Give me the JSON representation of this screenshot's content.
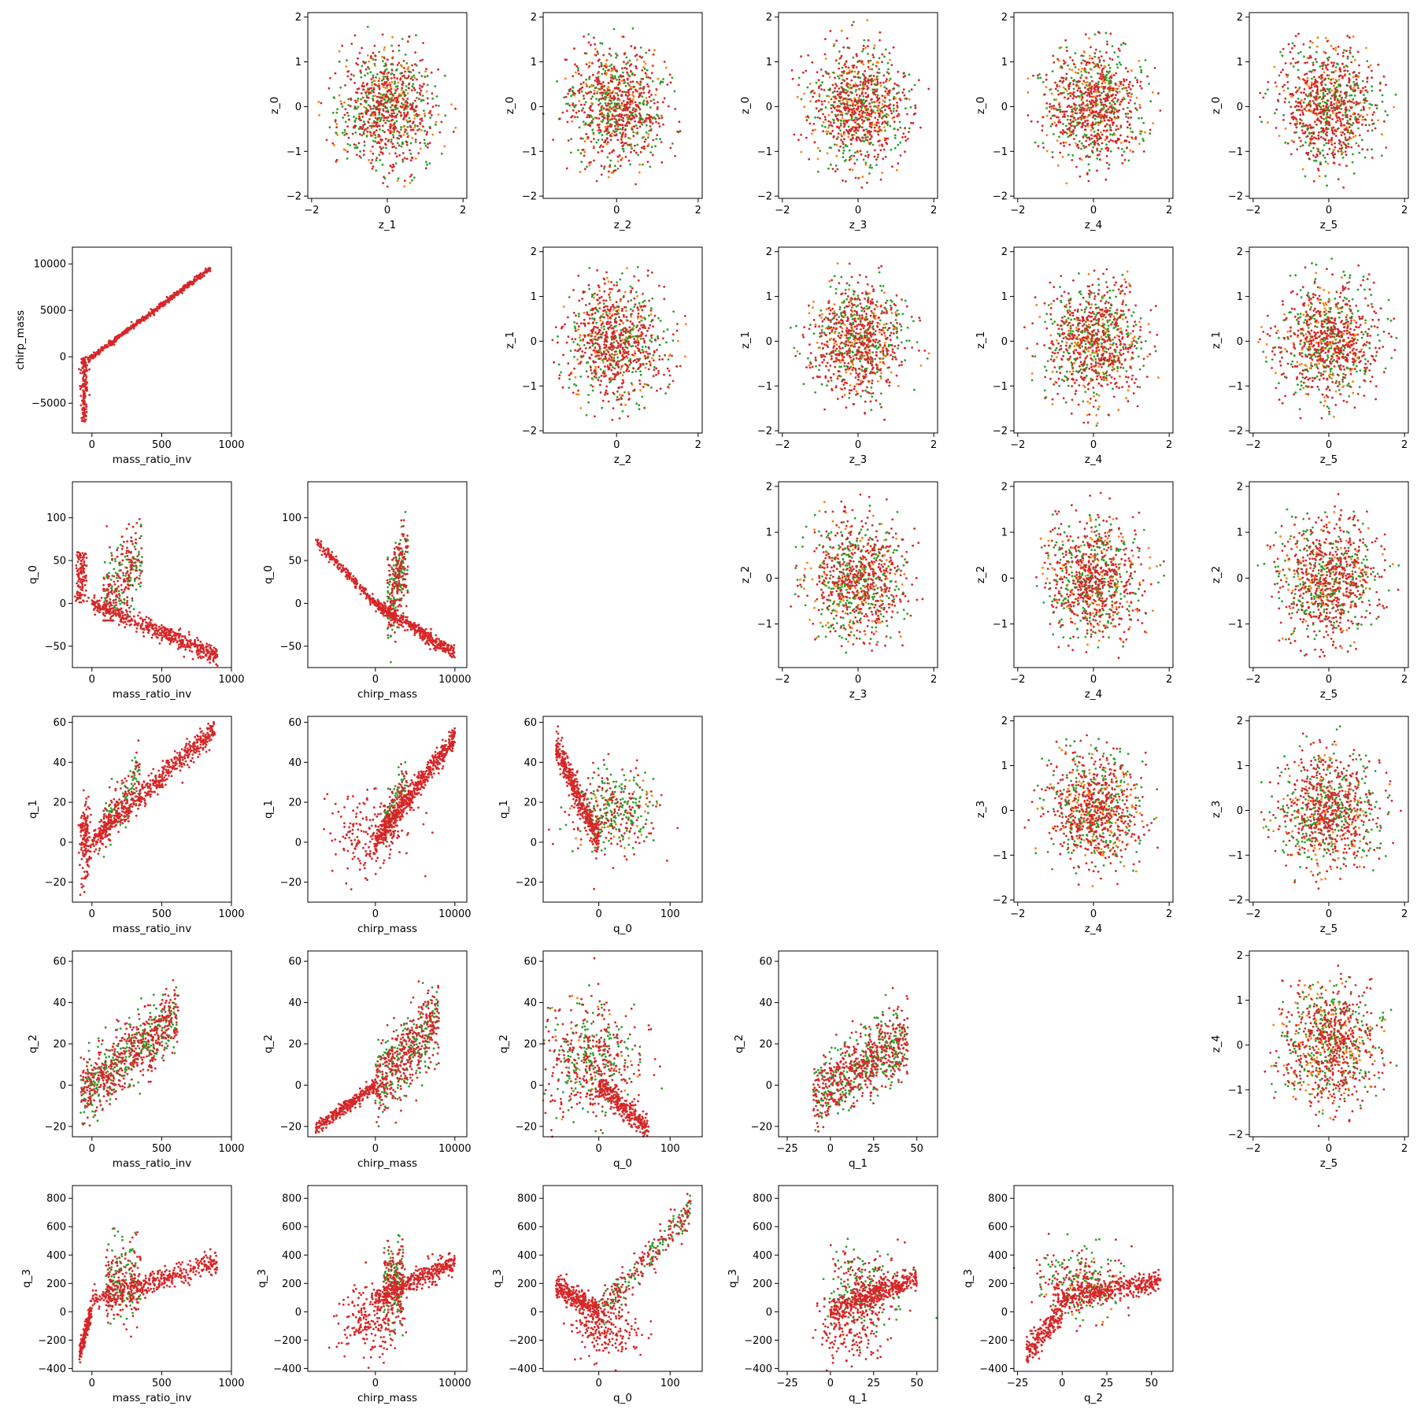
{
  "figure": {
    "description_colors": {
      "primary": "#d62728",
      "secondary": "#2ca02c",
      "tertiary": "#ff7f0e"
    }
  },
  "chart_data": [
    {
      "id": "z1_z0",
      "row": 0,
      "col": 1,
      "type": "scatter",
      "xlabel": "z_1",
      "ylabel": "z_0",
      "xlim": [
        -2.1,
        2.1
      ],
      "ylim": [
        -2.05,
        2.1
      ],
      "xticks": [
        -2,
        0,
        2
      ],
      "yticks": [
        -2,
        -1,
        0,
        1,
        2
      ],
      "gen": "blob",
      "cx": 0,
      "cy": 0,
      "sx": 0.65,
      "sy": 0.65,
      "r": 1.9
    },
    {
      "id": "z2_z0",
      "row": 0,
      "col": 2,
      "type": "scatter",
      "xlabel": "z_2",
      "ylabel": "z_0",
      "xlim": [
        -1.8,
        2.1
      ],
      "ylim": [
        -2.05,
        2.1
      ],
      "xticks": [
        0,
        2
      ],
      "yticks": [
        -2,
        -1,
        0,
        1,
        2
      ],
      "gen": "blob",
      "cx": 0,
      "cy": 0,
      "sx": 0.6,
      "sy": 0.65,
      "r": 1.85
    },
    {
      "id": "z3_z0",
      "row": 0,
      "col": 3,
      "type": "scatter",
      "xlabel": "z_3",
      "ylabel": "z_0",
      "xlim": [
        -2.1,
        2.1
      ],
      "ylim": [
        -2.05,
        2.1
      ],
      "xticks": [
        -2,
        0,
        2
      ],
      "yticks": [
        -2,
        -1,
        0,
        1,
        2
      ],
      "gen": "blob",
      "cx": 0,
      "cy": 0,
      "sx": 0.65,
      "sy": 0.65,
      "r": 1.95
    },
    {
      "id": "z4_z0",
      "row": 0,
      "col": 4,
      "type": "scatter",
      "xlabel": "z_4",
      "ylabel": "z_0",
      "xlim": [
        -2.1,
        2.1
      ],
      "ylim": [
        -2.05,
        2.1
      ],
      "xticks": [
        -2,
        0,
        2
      ],
      "yticks": [
        -2,
        -1,
        0,
        1,
        2
      ],
      "gen": "blob",
      "cx": 0,
      "cy": 0,
      "sx": 0.65,
      "sy": 0.65,
      "r": 1.9
    },
    {
      "id": "z5_z0",
      "row": 0,
      "col": 5,
      "type": "scatter",
      "xlabel": "z_5",
      "ylabel": "z_0",
      "xlim": [
        -2.1,
        2.1
      ],
      "ylim": [
        -2.05,
        2.1
      ],
      "xticks": [
        -2,
        0,
        2
      ],
      "yticks": [
        -2,
        -1,
        0,
        1,
        2
      ],
      "gen": "blob",
      "cx": 0,
      "cy": 0,
      "sx": 0.65,
      "sy": 0.65,
      "r": 1.9
    },
    {
      "id": "mri_chirp",
      "row": 1,
      "col": 0,
      "type": "scatter",
      "xlabel": "mass_ratio_inv",
      "ylabel": "chirp_mass",
      "xlim": [
        -140,
        1000
      ],
      "ylim": [
        -8200,
        11800
      ],
      "xticks": [
        0,
        500,
        1000
      ],
      "yticks": [
        -5000,
        0,
        5000,
        10000
      ],
      "gen": "mri_chirp"
    },
    {
      "id": "z2_z1",
      "row": 1,
      "col": 2,
      "type": "scatter",
      "xlabel": "z_2",
      "ylabel": "z_1",
      "xlim": [
        -1.8,
        2.1
      ],
      "ylim": [
        -2.05,
        2.1
      ],
      "xticks": [
        0,
        2
      ],
      "yticks": [
        -2,
        -1,
        0,
        1,
        2
      ],
      "gen": "blob",
      "cx": 0,
      "cy": 0,
      "sx": 0.6,
      "sy": 0.65,
      "r": 1.85
    },
    {
      "id": "z3_z1",
      "row": 1,
      "col": 3,
      "type": "scatter",
      "xlabel": "z_3",
      "ylabel": "z_1",
      "xlim": [
        -2.1,
        2.1
      ],
      "ylim": [
        -2.05,
        2.1
      ],
      "xticks": [
        -2,
        0,
        2
      ],
      "yticks": [
        -2,
        -1,
        0,
        1,
        2
      ],
      "gen": "blob",
      "cx": 0,
      "cy": 0,
      "sx": 0.65,
      "sy": 0.65,
      "r": 1.9
    },
    {
      "id": "z4_z1",
      "row": 1,
      "col": 4,
      "type": "scatter",
      "xlabel": "z_4",
      "ylabel": "z_1",
      "xlim": [
        -2.1,
        2.1
      ],
      "ylim": [
        -2.05,
        2.1
      ],
      "xticks": [
        -2,
        0,
        2
      ],
      "yticks": [
        -2,
        -1,
        0,
        1,
        2
      ],
      "gen": "blob",
      "cx": 0,
      "cy": 0,
      "sx": 0.65,
      "sy": 0.65,
      "r": 1.9
    },
    {
      "id": "z5_z1",
      "row": 1,
      "col": 5,
      "type": "scatter",
      "xlabel": "z_5",
      "ylabel": "z_1",
      "xlim": [
        -2.1,
        2.1
      ],
      "ylim": [
        -2.05,
        2.1
      ],
      "xticks": [
        -2,
        0,
        2
      ],
      "yticks": [
        -2,
        -1,
        0,
        1,
        2
      ],
      "gen": "blob",
      "cx": 0,
      "cy": 0,
      "sx": 0.65,
      "sy": 0.65,
      "r": 1.9
    },
    {
      "id": "mri_q0",
      "row": 2,
      "col": 0,
      "type": "scatter",
      "xlabel": "mass_ratio_inv",
      "ylabel": "q_0",
      "xlim": [
        -140,
        1000
      ],
      "ylim": [
        -75,
        142
      ],
      "xticks": [
        0,
        500,
        1000
      ],
      "yticks": [
        -50,
        0,
        50,
        100
      ],
      "gen": "mri_q0"
    },
    {
      "id": "chirp_q0",
      "row": 2,
      "col": 1,
      "type": "scatter",
      "xlabel": "chirp_mass",
      "ylabel": "q_0",
      "xlim": [
        -8500,
        11500
      ],
      "ylim": [
        -75,
        142
      ],
      "xticks": [
        0,
        10000
      ],
      "yticks": [
        -50,
        0,
        50,
        100
      ],
      "gen": "chirp_q0"
    },
    {
      "id": "z3_z2",
      "row": 2,
      "col": 3,
      "type": "scatter",
      "xlabel": "z_3",
      "ylabel": "z_2",
      "xlim": [
        -2.1,
        2.1
      ],
      "ylim": [
        -1.95,
        2.1
      ],
      "xticks": [
        -2,
        0,
        2
      ],
      "yticks": [
        -1,
        0,
        1,
        2
      ],
      "gen": "blob",
      "cx": 0,
      "cy": 0,
      "sx": 0.65,
      "sy": 0.65,
      "r": 1.9
    },
    {
      "id": "z4_z2",
      "row": 2,
      "col": 4,
      "type": "scatter",
      "xlabel": "z_4",
      "ylabel": "z_2",
      "xlim": [
        -2.1,
        2.1
      ],
      "ylim": [
        -1.95,
        2.1
      ],
      "xticks": [
        -2,
        0,
        2
      ],
      "yticks": [
        -1,
        0,
        1,
        2
      ],
      "gen": "blob",
      "cx": 0,
      "cy": 0,
      "sx": 0.65,
      "sy": 0.65,
      "r": 1.9
    },
    {
      "id": "z5_z2",
      "row": 2,
      "col": 5,
      "type": "scatter",
      "xlabel": "z_5",
      "ylabel": "z_2",
      "xlim": [
        -2.1,
        2.1
      ],
      "ylim": [
        -1.95,
        2.1
      ],
      "xticks": [
        -2,
        0,
        2
      ],
      "yticks": [
        -1,
        0,
        1,
        2
      ],
      "gen": "blob",
      "cx": 0,
      "cy": 0,
      "sx": 0.65,
      "sy": 0.65,
      "r": 1.9
    },
    {
      "id": "mri_q1",
      "row": 3,
      "col": 0,
      "type": "scatter",
      "xlabel": "mass_ratio_inv",
      "ylabel": "q_1",
      "xlim": [
        -140,
        1000
      ],
      "ylim": [
        -30,
        63
      ],
      "xticks": [
        0,
        500,
        1000
      ],
      "yticks": [
        -20,
        0,
        20,
        40,
        60
      ],
      "gen": "mri_q1"
    },
    {
      "id": "chirp_q1",
      "row": 3,
      "col": 1,
      "type": "scatter",
      "xlabel": "chirp_mass",
      "ylabel": "q_1",
      "xlim": [
        -8500,
        11500
      ],
      "ylim": [
        -30,
        63
      ],
      "xticks": [
        0,
        10000
      ],
      "yticks": [
        -20,
        0,
        20,
        40,
        60
      ],
      "gen": "chirp_q1"
    },
    {
      "id": "q0_q1",
      "row": 3,
      "col": 2,
      "type": "scatter",
      "xlabel": "q_0",
      "ylabel": "q_1",
      "xlim": [
        -78,
        145
      ],
      "ylim": [
        -30,
        63
      ],
      "xticks": [
        0,
        100
      ],
      "yticks": [
        -20,
        0,
        20,
        40,
        60
      ],
      "gen": "q0_q1"
    },
    {
      "id": "z4_z3",
      "row": 3,
      "col": 4,
      "type": "scatter",
      "xlabel": "z_4",
      "ylabel": "z_3",
      "xlim": [
        -2.1,
        2.1
      ],
      "ylim": [
        -2.05,
        2.1
      ],
      "xticks": [
        -2,
        0,
        2
      ],
      "yticks": [
        -2,
        -1,
        0,
        1,
        2
      ],
      "gen": "blob",
      "cx": 0,
      "cy": 0,
      "sx": 0.65,
      "sy": 0.65,
      "r": 1.9
    },
    {
      "id": "z5_z3",
      "row": 3,
      "col": 5,
      "type": "scatter",
      "xlabel": "z_5",
      "ylabel": "z_3",
      "xlim": [
        -2.1,
        2.1
      ],
      "ylim": [
        -2.05,
        2.1
      ],
      "xticks": [
        -2,
        0,
        2
      ],
      "yticks": [
        -2,
        -1,
        0,
        1,
        2
      ],
      "gen": "blob",
      "cx": 0,
      "cy": 0,
      "sx": 0.65,
      "sy": 0.65,
      "r": 1.9
    },
    {
      "id": "mri_q2",
      "row": 4,
      "col": 0,
      "type": "scatter",
      "xlabel": "mass_ratio_inv",
      "ylabel": "q_2",
      "xlim": [
        -140,
        1000
      ],
      "ylim": [
        -25,
        65
      ],
      "xticks": [
        0,
        500,
        1000
      ],
      "yticks": [
        -20,
        0,
        20,
        40,
        60
      ],
      "gen": "mri_q2"
    },
    {
      "id": "chirp_q2",
      "row": 4,
      "col": 1,
      "type": "scatter",
      "xlabel": "chirp_mass",
      "ylabel": "q_2",
      "xlim": [
        -8500,
        11500
      ],
      "ylim": [
        -25,
        65
      ],
      "xticks": [
        0,
        10000
      ],
      "yticks": [
        -20,
        0,
        20,
        40,
        60
      ],
      "gen": "chirp_q2"
    },
    {
      "id": "q0_q2",
      "row": 4,
      "col": 2,
      "type": "scatter",
      "xlabel": "q_0",
      "ylabel": "q_2",
      "xlim": [
        -78,
        145
      ],
      "ylim": [
        -25,
        65
      ],
      "xticks": [
        0,
        100
      ],
      "yticks": [
        -20,
        0,
        20,
        40,
        60
      ],
      "gen": "q0_q2"
    },
    {
      "id": "q1_q2",
      "row": 4,
      "col": 3,
      "type": "scatter",
      "xlabel": "q_1",
      "ylabel": "q_2",
      "xlim": [
        -30,
        62
      ],
      "ylim": [
        -25,
        65
      ],
      "xticks": [
        -25,
        0,
        25,
        50
      ],
      "yticks": [
        -20,
        0,
        20,
        40,
        60
      ],
      "gen": "q1_q2"
    },
    {
      "id": "z5_z4",
      "row": 4,
      "col": 5,
      "type": "scatter",
      "xlabel": "z_5",
      "ylabel": "z_4",
      "xlim": [
        -2.1,
        2.1
      ],
      "ylim": [
        -2.05,
        2.1
      ],
      "xticks": [
        -2,
        0,
        2
      ],
      "yticks": [
        -2,
        -1,
        0,
        1,
        2
      ],
      "gen": "blob",
      "cx": 0,
      "cy": 0,
      "sx": 0.65,
      "sy": 0.65,
      "r": 1.9
    },
    {
      "id": "mri_q3",
      "row": 5,
      "col": 0,
      "type": "scatter",
      "xlabel": "mass_ratio_inv",
      "ylabel": "q_3",
      "xlim": [
        -140,
        1000
      ],
      "ylim": [
        -420,
        890
      ],
      "xticks": [
        0,
        500,
        1000
      ],
      "yticks": [
        -400,
        -200,
        0,
        200,
        400,
        600,
        800
      ],
      "gen": "mri_q3"
    },
    {
      "id": "chirp_q3",
      "row": 5,
      "col": 1,
      "type": "scatter",
      "xlabel": "chirp_mass",
      "ylabel": "q_3",
      "xlim": [
        -8500,
        11500
      ],
      "ylim": [
        -420,
        890
      ],
      "xticks": [
        0,
        10000
      ],
      "yticks": [
        -400,
        -200,
        0,
        200,
        400,
        600,
        800
      ],
      "gen": "chirp_q3"
    },
    {
      "id": "q0_q3",
      "row": 5,
      "col": 2,
      "type": "scatter",
      "xlabel": "q_0",
      "ylabel": "q_3",
      "xlim": [
        -78,
        145
      ],
      "ylim": [
        -420,
        890
      ],
      "xticks": [
        0,
        100
      ],
      "yticks": [
        -400,
        -200,
        0,
        200,
        400,
        600,
        800
      ],
      "gen": "q0_q3"
    },
    {
      "id": "q1_q3",
      "row": 5,
      "col": 3,
      "type": "scatter",
      "xlabel": "q_1",
      "ylabel": "q_3",
      "xlim": [
        -30,
        62
      ],
      "ylim": [
        -420,
        890
      ],
      "xticks": [
        -25,
        0,
        25,
        50
      ],
      "yticks": [
        -400,
        -200,
        0,
        200,
        400,
        600,
        800
      ],
      "gen": "q1_q3"
    },
    {
      "id": "q2_q3",
      "row": 5,
      "col": 4,
      "type": "scatter",
      "xlabel": "q_2",
      "ylabel": "q_3",
      "xlim": [
        -27,
        62
      ],
      "ylim": [
        -420,
        890
      ],
      "xticks": [
        -25,
        0,
        25,
        50
      ],
      "yticks": [
        -400,
        -200,
        0,
        200,
        400,
        600,
        800
      ],
      "gen": "q2_q3"
    }
  ]
}
